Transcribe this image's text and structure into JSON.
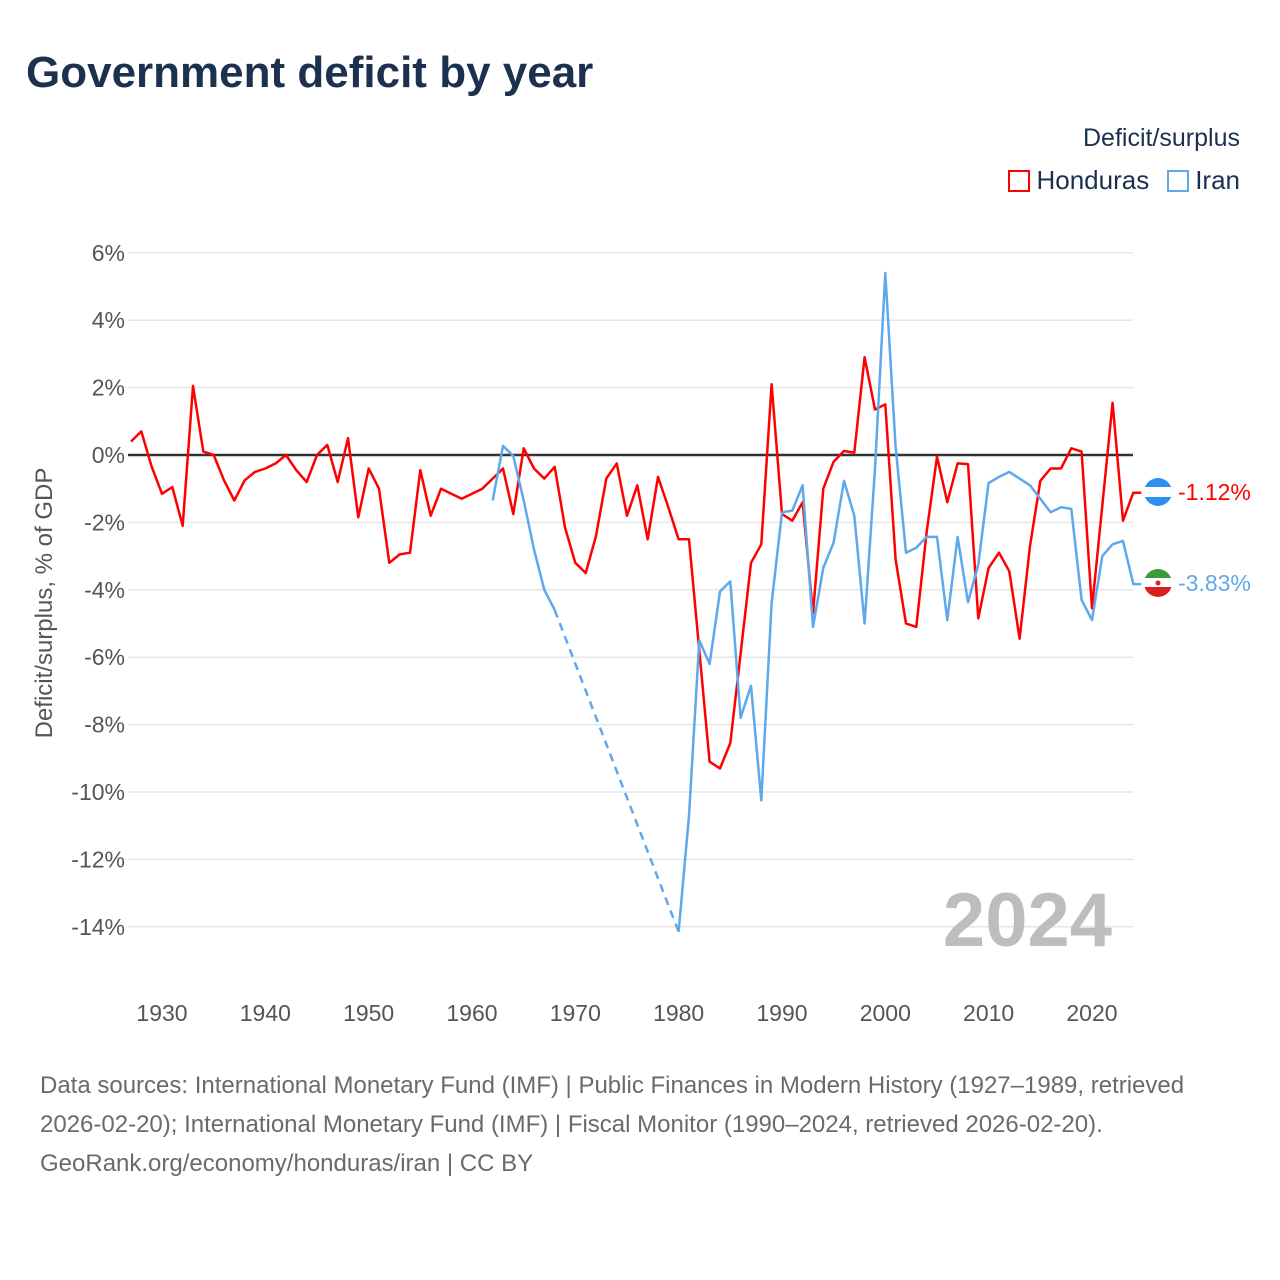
{
  "title": "Government deficit by year",
  "legend": {
    "title": "Deficit/surplus",
    "items": [
      {
        "label": "Honduras",
        "color": "#ff0000"
      },
      {
        "label": "Iran",
        "color": "#5fa8ec"
      }
    ]
  },
  "year_watermark": "2024",
  "end_labels": {
    "honduras": "-1.12%",
    "iran": "-3.83%"
  },
  "footer": {
    "sources": "Data sources: International Monetary Fund (IMF) | Public Finances in Modern History (1927–1989, retrieved 2026-02-20); International Monetary Fund (IMF) | Fiscal Monitor (1990–2024, retrieved 2026-02-20).",
    "credit": "GeoRank.org/economy/honduras/iran | CC BY"
  },
  "chart_data": {
    "type": "line",
    "title": "Government deficit by year",
    "xlabel": "",
    "ylabel": "Deficit/surplus, % of GDP",
    "xlim": [
      1927,
      2024
    ],
    "ylim": [
      -14,
      6
    ],
    "x_ticks": [
      1930,
      1940,
      1950,
      1960,
      1970,
      1980,
      1990,
      2000,
      2010,
      2020
    ],
    "x_tick_labels": [
      "1930",
      "1940",
      "1950",
      "1960",
      "1970",
      "1980",
      "1990",
      "2000",
      "2010",
      "2020"
    ],
    "y_ticks": [
      6,
      4,
      2,
      0,
      -2,
      -4,
      -6,
      -8,
      -10,
      -12,
      -14
    ],
    "y_tick_labels": [
      "6%",
      "4%",
      "2%",
      "0%",
      "-2%",
      "-4%",
      "-6%",
      "-8%",
      "-10%",
      "-12%",
      "-14%"
    ],
    "grid": true,
    "legend": "top-right",
    "series": [
      {
        "name": "Honduras",
        "color": "#ff0000",
        "x": [
          1927,
          1928,
          1929,
          1930,
          1931,
          1932,
          1933,
          1934,
          1935,
          1936,
          1937,
          1938,
          1939,
          1940,
          1941,
          1942,
          1943,
          1944,
          1945,
          1946,
          1947,
          1948,
          1949,
          1950,
          1951,
          1952,
          1953,
          1954,
          1955,
          1956,
          1957,
          1958,
          1959,
          1960,
          1961,
          1962,
          1963,
          1964,
          1965,
          1966,
          1967,
          1968,
          1969,
          1970,
          1971,
          1972,
          1973,
          1974,
          1975,
          1976,
          1977,
          1978,
          1979,
          1980,
          1981,
          1982,
          1983,
          1984,
          1985,
          1986,
          1987,
          1988,
          1989,
          1990,
          1991,
          1992,
          1993,
          1994,
          1995,
          1996,
          1997,
          1998,
          1999,
          2000,
          2001,
          2002,
          2003,
          2004,
          2005,
          2006,
          2007,
          2008,
          2009,
          2010,
          2011,
          2012,
          2013,
          2014,
          2015,
          2016,
          2017,
          2018,
          2019,
          2020,
          2021,
          2022,
          2023,
          2024
        ],
        "values": [
          0.4,
          0.7,
          -0.35,
          -1.15,
          -0.95,
          -2.1,
          2.05,
          0.1,
          0.0,
          -0.75,
          -1.35,
          -0.75,
          -0.5,
          -0.4,
          -0.25,
          0.0,
          -0.45,
          -0.8,
          0.0,
          0.3,
          -0.8,
          0.5,
          -1.85,
          -0.4,
          -1.0,
          -3.2,
          -2.95,
          -2.9,
          -0.45,
          -1.8,
          -1.0,
          -1.15,
          -1.3,
          -1.15,
          -1.0,
          -0.7,
          -0.4,
          -1.75,
          0.2,
          -0.4,
          -0.7,
          -0.35,
          -2.15,
          -3.2,
          -3.5,
          -2.4,
          -0.7,
          -0.25,
          -1.8,
          -0.9,
          -2.5,
          -0.65,
          -1.55,
          -2.5,
          -2.5,
          -5.8,
          -9.1,
          -9.3,
          -8.55,
          -5.9,
          -3.2,
          -2.65,
          2.1,
          -1.75,
          -1.95,
          -1.4,
          -4.7,
          -1.0,
          -0.2,
          0.12,
          0.07,
          2.9,
          1.35,
          1.5,
          -3.1,
          -5.0,
          -5.1,
          -2.3,
          -0.05,
          -1.4,
          -0.25,
          -0.27,
          -4.85,
          -3.35,
          -2.9,
          -3.45,
          -5.45,
          -2.7,
          -0.77,
          -0.4,
          -0.4,
          0.2,
          0.1,
          -4.55,
          -1.5,
          1.55,
          -1.95,
          -1.12
        ]
      },
      {
        "name": "Iran",
        "color": "#5fa8ec",
        "x": [
          1962,
          1963,
          1964,
          1965,
          1966,
          1967,
          1968,
          1980,
          1981,
          1982,
          1983,
          1984,
          1985,
          1986,
          1987,
          1988,
          1989,
          1990,
          1991,
          1992,
          1993,
          1994,
          1995,
          1996,
          1997,
          1998,
          1999,
          2000,
          2001,
          2002,
          2003,
          2004,
          2005,
          2006,
          2007,
          2008,
          2009,
          2010,
          2011,
          2012,
          2013,
          2014,
          2015,
          2016,
          2017,
          2018,
          2019,
          2020,
          2021,
          2022,
          2023,
          2024
        ],
        "values": [
          -1.35,
          0.27,
          -0.03,
          -1.35,
          -2.8,
          -4.0,
          -4.6,
          -14.15,
          -10.7,
          -5.5,
          -6.2,
          -4.05,
          -3.75,
          -7.8,
          -6.85,
          -10.25,
          -4.4,
          -1.7,
          -1.65,
          -0.9,
          -5.1,
          -3.35,
          -2.6,
          -0.77,
          -1.8,
          -5.0,
          -0.4,
          5.4,
          0.25,
          -2.9,
          -2.75,
          -2.43,
          -2.43,
          -4.9,
          -2.43,
          -4.37,
          -3.25,
          -0.83,
          -0.65,
          -0.5,
          -0.7,
          -0.9,
          -1.3,
          -1.7,
          -1.55,
          -1.6,
          -4.3,
          -4.9,
          -3.0,
          -2.65,
          -2.55,
          -3.83
        ]
      }
    ]
  }
}
